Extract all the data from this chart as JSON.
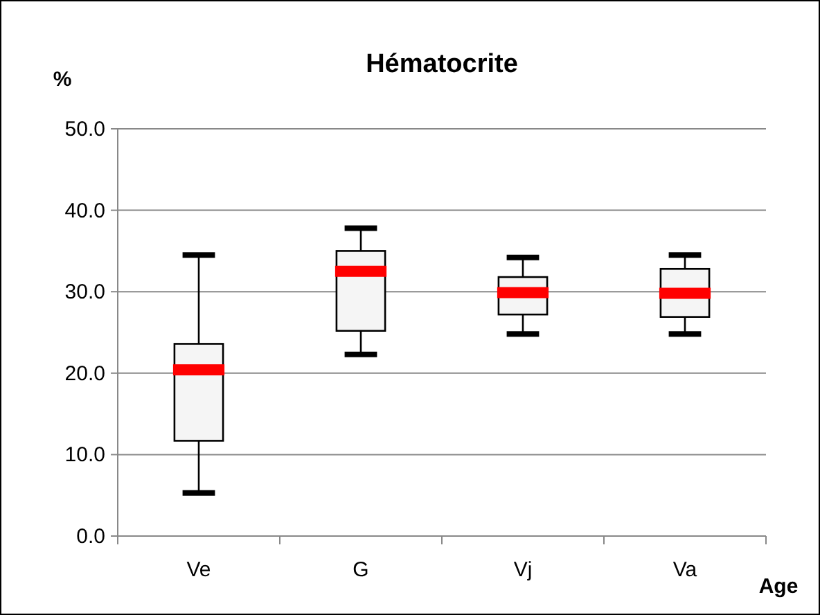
{
  "chart_data": {
    "type": "box",
    "title": "Hématocrite",
    "ylabel": "%",
    "xlabel": "Age",
    "categories": [
      "Ve",
      "G",
      "Vj",
      "Va"
    ],
    "color": "#f5f5f5",
    "grid": "y",
    "ylim": [
      0,
      50
    ],
    "yticks": [
      {
        "value": 0,
        "label": "0.0"
      },
      {
        "value": 10,
        "label": "10.0"
      },
      {
        "value": 20,
        "label": "20.0"
      },
      {
        "value": 30,
        "label": "30.0"
      },
      {
        "value": 40,
        "label": "40.0"
      },
      {
        "value": 50,
        "label": "50.0"
      }
    ],
    "boxes": [
      {
        "low": 5.3,
        "q1": 11.7,
        "median": 20.4,
        "q3": 23.6,
        "high": 34.5
      },
      {
        "low": 22.3,
        "q1": 25.2,
        "median": 32.5,
        "q3": 35.0,
        "high": 37.8
      },
      {
        "low": 24.8,
        "q1": 27.2,
        "median": 29.9,
        "q3": 31.8,
        "high": 34.2
      },
      {
        "low": 24.8,
        "q1": 26.9,
        "median": 29.8,
        "q3": 32.8,
        "high": 34.5
      }
    ]
  }
}
